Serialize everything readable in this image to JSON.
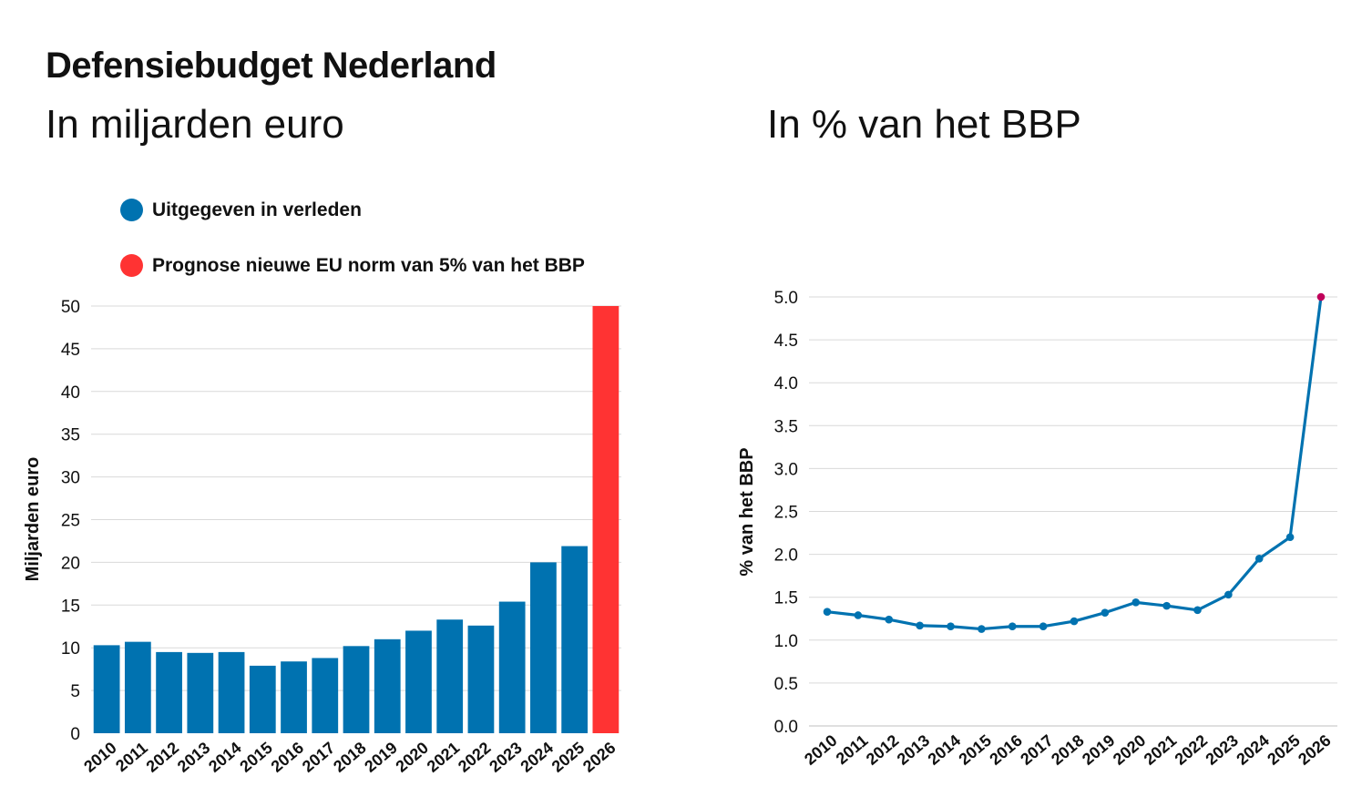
{
  "header": {
    "title": "Defensiebudget Nederland"
  },
  "chart_data": [
    {
      "type": "bar",
      "subtitle": "In miljarden euro",
      "ylabel": "Miljarden euro",
      "ylim": [
        0,
        50
      ],
      "yticks": [
        "0",
        "5",
        "10",
        "15",
        "20",
        "25",
        "30",
        "35",
        "40",
        "45",
        "50"
      ],
      "categories": [
        "2010",
        "2011",
        "2012",
        "2013",
        "2014",
        "2015",
        "2016",
        "2017",
        "2018",
        "2019",
        "2020",
        "2021",
        "2022",
        "2023",
        "2024",
        "2025",
        "2026"
      ],
      "series": [
        {
          "name": "Uitgegeven in verleden",
          "color": "#0072b0",
          "values": [
            10.3,
            10.7,
            9.5,
            9.4,
            9.5,
            7.9,
            8.4,
            8.8,
            10.2,
            11.0,
            12.0,
            13.3,
            12.6,
            15.4,
            20.0,
            21.9,
            null
          ]
        },
        {
          "name": "Prognose nieuwe EU norm van 5% van het BBP",
          "color": "#ff3333",
          "values": [
            null,
            null,
            null,
            null,
            null,
            null,
            null,
            null,
            null,
            null,
            null,
            null,
            null,
            null,
            null,
            null,
            50.0
          ]
        }
      ],
      "legend_position": "top-left",
      "grid": true
    },
    {
      "type": "line",
      "subtitle": "In % van het BBP",
      "ylabel": "% van het BBP",
      "ylim": [
        0,
        5
      ],
      "yticks": [
        "0.0",
        "0.5",
        "1.0",
        "1.5",
        "2.0",
        "2.5",
        "3.0",
        "3.5",
        "4.0",
        "4.5",
        "5.0"
      ],
      "x": [
        "2010",
        "2011",
        "2012",
        "2013",
        "2014",
        "2015",
        "2016",
        "2017",
        "2018",
        "2019",
        "2020",
        "2021",
        "2022",
        "2023",
        "2024",
        "2025",
        "2026"
      ],
      "series": [
        {
          "color": "#0072b0",
          "highlight_color": "#c0005a",
          "values": [
            1.33,
            1.29,
            1.24,
            1.17,
            1.16,
            1.13,
            1.16,
            1.16,
            1.22,
            1.32,
            1.44,
            1.4,
            1.35,
            1.53,
            1.95,
            2.2,
            5.0
          ]
        }
      ],
      "grid": true
    }
  ]
}
